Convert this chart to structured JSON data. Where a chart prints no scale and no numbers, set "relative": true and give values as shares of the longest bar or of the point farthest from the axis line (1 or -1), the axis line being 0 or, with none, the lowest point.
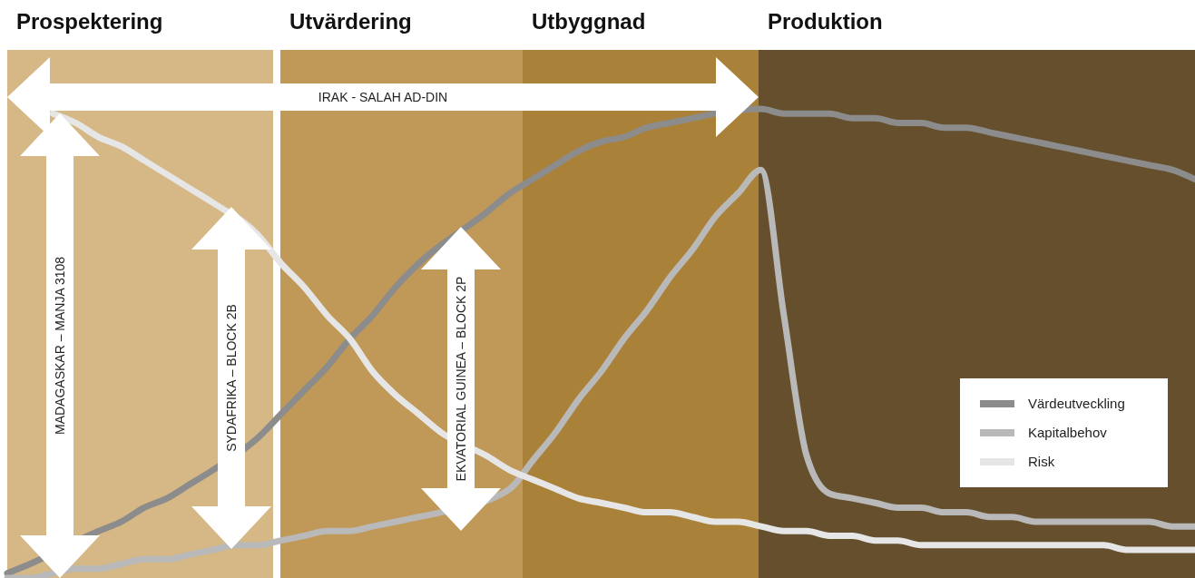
{
  "chart_data": {
    "type": "line",
    "relative": true,
    "legend": "bottom right",
    "marker": "none",
    "line_style": "solid",
    "categories": [
      null,
      null,
      null,
      null,
      null,
      null,
      null,
      null,
      null,
      null,
      null,
      null,
      null,
      null,
      null,
      null,
      null,
      null,
      null,
      null,
      null,
      null,
      null,
      null,
      null,
      null,
      null,
      null,
      null,
      null,
      null,
      null,
      null,
      null,
      null,
      null,
      null,
      null,
      null,
      null,
      null,
      null,
      null,
      null,
      null,
      null,
      null,
      null,
      null,
      null,
      null,
      null,
      null
    ],
    "series": [
      {
        "name": "Värdeutveckling",
        "color": "#8c8c8c",
        "values": [
          0.01,
          0.03,
          null,
          null,
          0.1,
          0.12,
          0.15,
          0.17,
          0.2,
          0.23,
          null,
          0.3,
          0.35,
          0.4,
          0.45,
          0.51,
          0.56,
          0.62,
          0.67,
          null,
          null,
          0.78,
          0.82,
          0.85,
          0.88,
          0.91,
          0.93,
          0.94,
          0.96,
          0.97,
          0.98,
          0.99,
          null,
          1.0,
          0.99,
          0.99,
          0.99,
          0.98,
          0.98,
          0.97,
          0.97,
          0.96,
          0.96,
          0.95,
          0.94,
          0.93,
          0.92,
          0.91,
          0.9,
          0.89,
          0.88,
          0.87,
          0.85
        ]
      },
      {
        "name": "Kapitalbehov",
        "color": "#b9b9b9",
        "values": [
          0,
          0,
          0.01,
          0.02,
          0.02,
          0.03,
          0.04,
          0.04,
          0.05,
          0.06,
          0.07,
          0.07,
          0.08,
          0.09,
          0.1,
          0.1,
          0.11,
          0.12,
          0.13,
          0.14,
          null,
          null,
          0.19,
          0.25,
          0.31,
          0.38,
          0.44,
          0.51,
          0.57,
          0.64,
          0.7,
          0.77,
          0.82,
          0.87,
          0.56,
          0.26,
          0.18,
          0.17,
          0.16,
          0.15,
          0.15,
          0.14,
          0.14,
          0.13,
          0.13,
          0.12,
          0.12,
          0.12,
          0.12,
          0.12,
          0.12,
          0.11,
          0.11
        ]
      },
      {
        "name": "Risk",
        "color": "#e6e6e6",
        "values": [
          null,
          null,
          0.99,
          0.97,
          0.94,
          0.92,
          0.89,
          0.86,
          0.83,
          0.8,
          null,
          0.73,
          0.67,
          0.62,
          0.56,
          0.51,
          0.44,
          0.39,
          0.35,
          0.31,
          null,
          0.26,
          0.23,
          0.21,
          0.19,
          0.17,
          0.16,
          0.15,
          0.14,
          0.14,
          0.13,
          0.12,
          0.12,
          0.11,
          0.1,
          0.1,
          0.09,
          0.09,
          0.08,
          0.08,
          0.07,
          0.07,
          0.07,
          0.07,
          0.07,
          0.07,
          0.07,
          0.07,
          0.07,
          0.06,
          0.06,
          0.06,
          0.06
        ]
      }
    ],
    "annotations": [
      "Prospektering",
      "Utvärdering",
      "Utbyggnad",
      "Produktion",
      "IRAK - SALAH AD-DIN",
      "MADAGASKAR – MANJA 3108",
      "SYDAFRIKA – BLOCK 2B",
      "EKVATORIAL GUINEA – BLOCK 2P"
    ]
  }
}
